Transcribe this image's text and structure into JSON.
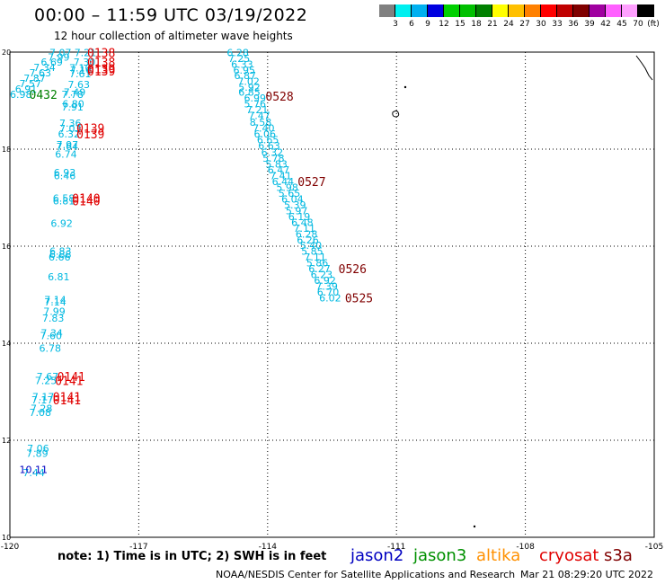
{
  "header": {
    "title": "00:00 – 11:59 UTC 03/19/2022",
    "subtitle": "12 hour collection of altimeter wave heights"
  },
  "scale": {
    "labels": [
      "3",
      "6",
      "9",
      "12",
      "15",
      "18",
      "21",
      "24",
      "27",
      "30",
      "33",
      "36",
      "39",
      "42",
      "45",
      "70"
    ],
    "unit": "(ft)",
    "colors": [
      "#808080",
      "#00f0f0",
      "#00b0f0",
      "#0000e0",
      "#00d000",
      "#00c000",
      "#008000",
      "#ffff00",
      "#ffc000",
      "#ff8000",
      "#ff0000",
      "#c00000",
      "#800000",
      "#a000a0",
      "#ff60ff",
      "#ffa0ff",
      "#000000"
    ]
  },
  "footer": {
    "note": "note:  1) Time is in UTC; 2) SWH is in feet",
    "credit": "NOAA/NESDIS Center for Satellite Applications and Research",
    "credit_time": "Mar 21 08:29:20 UTC 2022",
    "satellites": [
      {
        "name": "jason2",
        "color": "#0000c0"
      },
      {
        "name": "jason3",
        "color": "#009000"
      },
      {
        "name": "altika",
        "color": "#ff9000"
      },
      {
        "name": "cryosat",
        "color": "#e00000"
      },
      {
        "name": "s3a",
        "color": "#800000"
      }
    ]
  },
  "map": {
    "lon_range": [
      -120,
      -105
    ],
    "lat_range": [
      10,
      20
    ],
    "lon_ticks": [
      "-120",
      "-117",
      "-114",
      "-111",
      "-108",
      "-105"
    ],
    "lat_ticks": [
      "20",
      "18",
      "16",
      "14",
      "12",
      "10"
    ],
    "colors": {
      "cyan": "#00b8e0",
      "blue": "#0000c0",
      "red": "#e00000",
      "green": "#008000",
      "maroon": "#800000"
    },
    "tracks": [
      {
        "color": "cyan",
        "points": [
          {
            "lon": -119.08,
            "lat": 19.92,
            "v": "7.07"
          },
          {
            "lon": -119.12,
            "lat": 19.82,
            "v": "7.99"
          },
          {
            "lon": -119.28,
            "lat": 19.72,
            "v": "6.69"
          },
          {
            "lon": -119.45,
            "lat": 19.61,
            "v": "7.34"
          },
          {
            "lon": -119.55,
            "lat": 19.5,
            "v": "7.63"
          },
          {
            "lon": -119.68,
            "lat": 19.39,
            "v": "7.87"
          },
          {
            "lon": -119.78,
            "lat": 19.28,
            "v": "7.57"
          },
          {
            "lon": -119.88,
            "lat": 19.17,
            "v": "6.91"
          },
          {
            "lon": -120.0,
            "lat": 19.06,
            "v": "6.98"
          }
        ]
      },
      {
        "color": "cyan",
        "points": [
          {
            "lon": -118.5,
            "lat": 19.92,
            "v": "7.21"
          },
          {
            "lon": -118.52,
            "lat": 19.72,
            "v": "7.30"
          },
          {
            "lon": -118.62,
            "lat": 19.6,
            "v": "7.10"
          },
          {
            "lon": -118.6,
            "lat": 19.56,
            "v": "7.16"
          },
          {
            "lon": -118.62,
            "lat": 19.48,
            "v": "7.61"
          },
          {
            "lon": -118.65,
            "lat": 19.26,
            "v": "7.63"
          },
          {
            "lon": -118.75,
            "lat": 19.1,
            "v": "7.49"
          },
          {
            "lon": -118.8,
            "lat": 19.06,
            "v": "7.78"
          },
          {
            "lon": -118.78,
            "lat": 18.86,
            "v": "6.80"
          },
          {
            "lon": -118.8,
            "lat": 18.8,
            "v": "7.91"
          },
          {
            "lon": -118.85,
            "lat": 18.46,
            "v": "7.36"
          },
          {
            "lon": -118.85,
            "lat": 18.35,
            "v": "7.03"
          },
          {
            "lon": -118.88,
            "lat": 18.24,
            "v": "6.32"
          },
          {
            "lon": -118.92,
            "lat": 18.02,
            "v": "7.97"
          },
          {
            "lon": -118.92,
            "lat": 17.98,
            "v": "7.64"
          },
          {
            "lon": -118.95,
            "lat": 17.82,
            "v": "6.74"
          },
          {
            "lon": -118.98,
            "lat": 17.44,
            "v": "6.93"
          },
          {
            "lon": -118.98,
            "lat": 17.38,
            "v": "6.46"
          },
          {
            "lon": -119.0,
            "lat": 16.92,
            "v": "6.58"
          },
          {
            "lon": -119.0,
            "lat": 16.86,
            "v": "6.81"
          },
          {
            "lon": -119.05,
            "lat": 16.4,
            "v": "6.92"
          },
          {
            "lon": -119.08,
            "lat": 15.82,
            "v": "6.83"
          },
          {
            "lon": -119.08,
            "lat": 15.76,
            "v": "6.88"
          },
          {
            "lon": -119.1,
            "lat": 15.7,
            "v": "6.66"
          },
          {
            "lon": -119.12,
            "lat": 15.3,
            "v": "6.81"
          },
          {
            "lon": -119.2,
            "lat": 14.82,
            "v": "7.14"
          },
          {
            "lon": -119.2,
            "lat": 14.78,
            "v": "7.14"
          },
          {
            "lon": -119.22,
            "lat": 14.58,
            "v": "7.99"
          },
          {
            "lon": -119.25,
            "lat": 14.44,
            "v": "7.83"
          },
          {
            "lon": -119.28,
            "lat": 14.14,
            "v": "7.34"
          },
          {
            "lon": -119.3,
            "lat": 14.08,
            "v": "7.60"
          },
          {
            "lon": -119.32,
            "lat": 13.82,
            "v": "6.78"
          },
          {
            "lon": -119.38,
            "lat": 13.24,
            "v": "7.67"
          },
          {
            "lon": -119.42,
            "lat": 13.16,
            "v": "7.25"
          },
          {
            "lon": -119.48,
            "lat": 12.82,
            "v": "7.17"
          },
          {
            "lon": -119.5,
            "lat": 12.76,
            "v": "7.17"
          },
          {
            "lon": -119.52,
            "lat": 12.58,
            "v": "7.28"
          },
          {
            "lon": -119.55,
            "lat": 12.5,
            "v": "7.08"
          },
          {
            "lon": -119.6,
            "lat": 11.76,
            "v": "7.06"
          },
          {
            "lon": -119.62,
            "lat": 11.66,
            "v": "7.89"
          },
          {
            "lon": -119.7,
            "lat": 11.26,
            "v": "7.44"
          }
        ]
      },
      {
        "color": "blue",
        "points": [
          {
            "lon": -119.78,
            "lat": 11.32,
            "v": "10.11"
          }
        ]
      },
      {
        "color": "cyan",
        "points": [
          {
            "lon": -114.95,
            "lat": 19.92,
            "v": "6.28"
          },
          {
            "lon": -114.92,
            "lat": 19.8,
            "v": "7.25"
          },
          {
            "lon": -114.85,
            "lat": 19.68,
            "v": "6.33"
          },
          {
            "lon": -114.8,
            "lat": 19.56,
            "v": "6.95"
          },
          {
            "lon": -114.78,
            "lat": 19.44,
            "v": "6.87"
          },
          {
            "lon": -114.7,
            "lat": 19.32,
            "v": "7.02"
          },
          {
            "lon": -114.68,
            "lat": 19.2,
            "v": "5.92"
          },
          {
            "lon": -114.68,
            "lat": 19.1,
            "v": "6.85"
          },
          {
            "lon": -114.55,
            "lat": 18.98,
            "v": "6.99"
          },
          {
            "lon": -114.55,
            "lat": 18.86,
            "v": "5.76"
          },
          {
            "lon": -114.5,
            "lat": 18.74,
            "v": "7.21"
          },
          {
            "lon": -114.45,
            "lat": 18.62,
            "v": "7.47"
          },
          {
            "lon": -114.42,
            "lat": 18.48,
            "v": "8.58"
          },
          {
            "lon": -114.35,
            "lat": 18.36,
            "v": "7.40"
          },
          {
            "lon": -114.32,
            "lat": 18.24,
            "v": "6.06"
          },
          {
            "lon": -114.25,
            "lat": 18.12,
            "v": "6.65"
          },
          {
            "lon": -114.22,
            "lat": 18.0,
            "v": "6.63"
          },
          {
            "lon": -114.15,
            "lat": 17.86,
            "v": "6.32"
          },
          {
            "lon": -114.12,
            "lat": 17.74,
            "v": "5.78"
          },
          {
            "lon": -114.05,
            "lat": 17.62,
            "v": "5.83"
          },
          {
            "lon": -114.0,
            "lat": 17.5,
            "v": "6.47"
          },
          {
            "lon": -113.95,
            "lat": 17.38,
            "v": "7.41"
          },
          {
            "lon": -113.9,
            "lat": 17.26,
            "v": "6.44"
          },
          {
            "lon": -113.8,
            "lat": 17.14,
            "v": "5.98"
          },
          {
            "lon": -113.75,
            "lat": 17.02,
            "v": "5.65"
          },
          {
            "lon": -113.68,
            "lat": 16.9,
            "v": "6.04"
          },
          {
            "lon": -113.62,
            "lat": 16.78,
            "v": "5.39"
          },
          {
            "lon": -113.58,
            "lat": 16.66,
            "v": "5.97"
          },
          {
            "lon": -113.52,
            "lat": 16.54,
            "v": "6.19"
          },
          {
            "lon": -113.45,
            "lat": 16.42,
            "v": "6.48"
          },
          {
            "lon": -113.4,
            "lat": 16.3,
            "v": "7.11"
          },
          {
            "lon": -113.35,
            "lat": 16.18,
            "v": "6.28"
          },
          {
            "lon": -113.32,
            "lat": 16.06,
            "v": "6.26"
          },
          {
            "lon": -113.25,
            "lat": 15.94,
            "v": "5.40"
          },
          {
            "lon": -113.22,
            "lat": 15.82,
            "v": "5.85"
          },
          {
            "lon": -113.15,
            "lat": 15.7,
            "v": "7.11"
          },
          {
            "lon": -113.1,
            "lat": 15.58,
            "v": "5.86"
          },
          {
            "lon": -113.05,
            "lat": 15.46,
            "v": "6.27"
          },
          {
            "lon": -113.0,
            "lat": 15.34,
            "v": "6.23"
          },
          {
            "lon": -112.92,
            "lat": 15.22,
            "v": "6.92"
          },
          {
            "lon": -112.88,
            "lat": 15.1,
            "v": "7.39"
          },
          {
            "lon": -112.85,
            "lat": 14.98,
            "v": "6.70"
          },
          {
            "lon": -112.8,
            "lat": 14.86,
            "v": "6.02"
          }
        ]
      }
    ],
    "time_labels": [
      {
        "lon": -118.2,
        "lat": 19.92,
        "v": "0138",
        "color": "red"
      },
      {
        "lon": -118.2,
        "lat": 19.72,
        "v": "0138",
        "color": "red"
      },
      {
        "lon": -118.2,
        "lat": 19.58,
        "v": "0139",
        "color": "red"
      },
      {
        "lon": -118.2,
        "lat": 19.54,
        "v": "0139",
        "color": "red"
      },
      {
        "lon": -119.55,
        "lat": 19.06,
        "v": "0432",
        "color": "green"
      },
      {
        "lon": -114.05,
        "lat": 19.02,
        "v": "0528",
        "color": "maroon"
      },
      {
        "lon": -118.45,
        "lat": 18.36,
        "v": "0139",
        "color": "red"
      },
      {
        "lon": -118.45,
        "lat": 18.24,
        "v": "0139",
        "color": "red"
      },
      {
        "lon": -118.55,
        "lat": 16.92,
        "v": "0140",
        "color": "red"
      },
      {
        "lon": -118.55,
        "lat": 16.86,
        "v": "0140",
        "color": "red"
      },
      {
        "lon": -113.3,
        "lat": 17.26,
        "v": "0527",
        "color": "maroon"
      },
      {
        "lon": -118.9,
        "lat": 13.24,
        "v": "0141",
        "color": "red"
      },
      {
        "lon": -118.95,
        "lat": 13.16,
        "v": "0141",
        "color": "red"
      },
      {
        "lon": -119.0,
        "lat": 12.82,
        "v": "0141",
        "color": "red"
      },
      {
        "lon": -119.0,
        "lat": 12.76,
        "v": "0141",
        "color": "red"
      },
      {
        "lon": -112.35,
        "lat": 15.46,
        "v": "0526",
        "color": "maroon"
      },
      {
        "lon": -112.2,
        "lat": 14.86,
        "v": "0525",
        "color": "maroon"
      }
    ]
  }
}
